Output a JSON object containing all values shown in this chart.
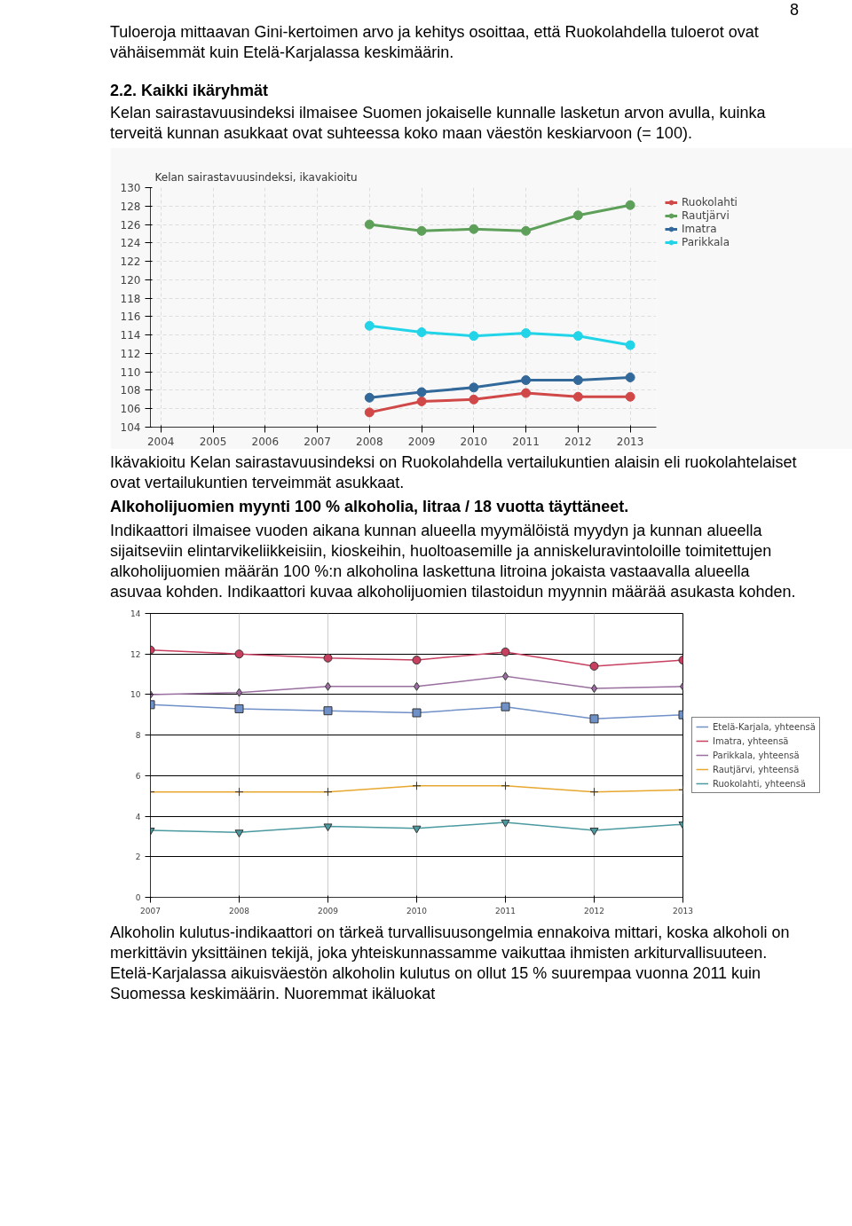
{
  "chart_data": [
    {
      "type": "line",
      "title": "Kelan sairastavuusindeksi, ikavakioitu",
      "annotations": [
        "8",
        "Tuloeroja mittaavan Gini-kertoimen arvo ja kehitys osoittaa, että Ruokolahdella tuloerot ovat vähäisemmät kuin Etelä-Karjalassa keskimäärin.",
        "2.2.   Kaikki ikäryhmät",
        "Kelan sairastavuusindeksi ilmaisee Suomen jokaiselle kunnalle lasketun arvon avulla, kuinka terveitä kunnan asukkaat ovat suhteessa koko maan väestön keskiarvoon (= 100)."
      ],
      "x": [
        2008,
        2009,
        2010,
        2011,
        2012,
        2013
      ],
      "series": [
        {
          "name": "Ruokolahti",
          "color": "#d04848",
          "values": [
            105.6,
            106.8,
            107.0,
            107.7,
            107.3,
            107.3
          ]
        },
        {
          "name": "Rautjärvi",
          "color": "#5ea05a",
          "values": [
            126.0,
            125.3,
            125.5,
            125.3,
            127.0,
            128.1
          ]
        },
        {
          "name": "Imatra",
          "color": "#33699a",
          "values": [
            107.2,
            107.8,
            108.3,
            109.1,
            109.1,
            109.4
          ]
        },
        {
          "name": "Parikkala",
          "color": "#22d4e8",
          "values": [
            115.0,
            114.3,
            113.9,
            114.2,
            113.9,
            112.9
          ]
        }
      ],
      "xlim": [
        2003.8,
        2013.5
      ],
      "xticks": [
        2004,
        2005,
        2006,
        2007,
        2008,
        2009,
        2010,
        2011,
        2012,
        2013
      ],
      "ylim": [
        104,
        130
      ],
      "yticks": [
        104,
        106,
        108,
        110,
        112,
        114,
        116,
        118,
        120,
        122,
        124,
        126,
        128,
        130
      ],
      "grid": true,
      "legend": "top right",
      "marker": "circle",
      "line_style": "solid"
    },
    {
      "type": "line",
      "annotations": [
        "Ikävakioitu Kelan sairastavuusindeksi on Ruokolahdella vertailukuntien alaisin eli ruokolahtelaiset ovat vertailukuntien terveimmät asukkaat.",
        "Alkoholijuomien myynti 100 % alkoholia, litraa / 18 vuotta täyttäneet.",
        "Indikaattori ilmaisee vuoden aikana kunnan alueella myymälöistä myydyn ja kunnan alueella sijaitseviin elintarvikeliikkeisiin, kioskeihin, huoltoasemille ja anniskeluravintoloille toimitettujen alkoholijuomien määrän 100 %:n alkoholina laskettuna litroina jokaista vastaavalla alueella asuvaa kohden. Indikaattori kuvaa alkoholijuomien tilastoidun myynnin määrää asukasta kohden.",
        "Alkoholin kulutus-indikaattori on tärkeä turvallisuusongelmia ennakoiva mittari, koska alkoholi on merkittävin yksittäinen tekijä, joka yhteiskunnassamme vaikuttaa ihmisten arkiturvallisuuteen. Etelä-Karjalassa aikuisväestön alkoholin kulutus on ollut 15 % suurempaa vuonna 2011 kuin Suomessa keskimäärin. Nuoremmat ikäluokat"
      ],
      "x": [
        2007,
        2008,
        2009,
        2010,
        2011,
        2012,
        2013
      ],
      "series": [
        {
          "name": "Etelä-Karjala, yhteensä",
          "color": "#7090c8",
          "marker": "square",
          "values": [
            9.5,
            9.3,
            9.2,
            9.1,
            9.4,
            8.8,
            9.0
          ]
        },
        {
          "name": "Imatra, yhteensä",
          "color": "#c84060",
          "marker": "circle",
          "values": [
            12.2,
            12.0,
            11.8,
            11.7,
            12.1,
            11.4,
            11.7
          ]
        },
        {
          "name": "Parikkala, yhteensä",
          "color": "#9a6fa0",
          "marker": "diamond",
          "values": [
            10.0,
            10.1,
            10.4,
            10.4,
            10.9,
            10.3,
            10.4
          ]
        },
        {
          "name": "Rautjärvi, yhteensä",
          "color": "#e8a830",
          "marker": "cross",
          "values": [
            5.2,
            5.2,
            5.2,
            5.5,
            5.5,
            5.2,
            5.3
          ]
        },
        {
          "name": "Ruokolahti, yhteensä",
          "color": "#4a9aa0",
          "marker": "triangle",
          "values": [
            3.3,
            3.2,
            3.5,
            3.4,
            3.7,
            3.3,
            3.6
          ]
        }
      ],
      "xlim": [
        2007,
        2013
      ],
      "xticks": [
        2007,
        2008,
        2009,
        2010,
        2011,
        2012,
        2013
      ],
      "ylim": [
        0,
        14
      ],
      "yticks": [
        0,
        2,
        4,
        6,
        8,
        10,
        12,
        14
      ],
      "grid": true,
      "legend": "right",
      "line_style": "solid"
    }
  ]
}
